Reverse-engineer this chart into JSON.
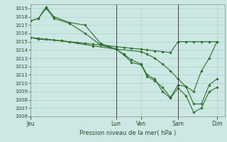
{
  "background_color": "#cde8e4",
  "grid_color": "#aad4cc",
  "line_color": "#2d6e2d",
  "marker_color": "#2d6e2d",
  "xlabel_text": "Pression niveau de la mer( hPa )",
  "ylim": [
    1006,
    1019.5
  ],
  "yticks": [
    1006,
    1007,
    1008,
    1009,
    1010,
    1011,
    1012,
    1013,
    1014,
    1015,
    1016,
    1017,
    1018,
    1019
  ],
  "xtick_labels": [
    "Jeu",
    "Lun",
    "Ven",
    "Sam",
    "Dim"
  ],
  "xtick_positions": [
    0.0,
    0.44,
    0.57,
    0.76,
    0.96
  ],
  "vline_positions": [
    0.44,
    0.76
  ],
  "xlim": [
    0,
    1.0
  ],
  "s1_x": [
    0.0,
    0.04,
    0.08,
    0.12,
    0.16,
    0.2,
    0.24,
    0.28,
    0.32,
    0.36,
    0.4,
    0.44,
    0.48,
    0.52,
    0.57,
    0.6,
    0.64,
    0.68,
    0.72,
    0.76,
    0.8,
    0.84,
    0.88,
    0.92,
    0.96
  ],
  "s1_y": [
    1015.5,
    1015.4,
    1015.3,
    1015.2,
    1015.1,
    1015.0,
    1014.9,
    1014.8,
    1014.7,
    1014.6,
    1014.5,
    1014.4,
    1014.3,
    1014.2,
    1014.1,
    1014.0,
    1013.9,
    1013.8,
    1013.7,
    1015.0,
    1015.0,
    1015.0,
    1015.0,
    1015.0,
    1015.0
  ],
  "s2_x": [
    0.0,
    0.04,
    0.08,
    0.12,
    0.2,
    0.28,
    0.36,
    0.44,
    0.48,
    0.52,
    0.57,
    0.6,
    0.64,
    0.68,
    0.72,
    0.76,
    0.8,
    0.84,
    0.88,
    0.92,
    0.96
  ],
  "s2_y": [
    1017.5,
    1017.8,
    1019.2,
    1018.0,
    1017.3,
    1017.0,
    1014.8,
    1014.1,
    1013.5,
    1012.8,
    1012.3,
    1011.0,
    1010.5,
    1009.0,
    1008.2,
    1009.4,
    1008.5,
    1006.5,
    1007.0,
    1009.0,
    1009.5
  ],
  "s3_x": [
    0.0,
    0.04,
    0.08,
    0.12,
    0.2,
    0.28,
    0.36,
    0.44,
    0.48,
    0.52,
    0.57,
    0.6,
    0.64,
    0.68,
    0.72,
    0.76,
    0.8,
    0.84,
    0.88,
    0.92,
    0.96
  ],
  "s3_y": [
    1017.5,
    1017.8,
    1019.0,
    1017.8,
    1017.2,
    1016.0,
    1014.6,
    1014.1,
    1013.4,
    1012.5,
    1012.2,
    1010.8,
    1010.3,
    1009.5,
    1008.3,
    1009.8,
    1009.6,
    1007.5,
    1007.5,
    1009.8,
    1010.5
  ],
  "s4_x": [
    0.0,
    0.04,
    0.16,
    0.32,
    0.44,
    0.57,
    0.6,
    0.64,
    0.68,
    0.72,
    0.76,
    0.8,
    0.84,
    0.88,
    0.92,
    0.96
  ],
  "s4_y": [
    1015.5,
    1015.3,
    1015.1,
    1014.5,
    1014.1,
    1013.8,
    1013.5,
    1013.0,
    1012.3,
    1011.5,
    1010.5,
    1009.6,
    1009.0,
    1011.5,
    1013.0,
    1015.0
  ]
}
